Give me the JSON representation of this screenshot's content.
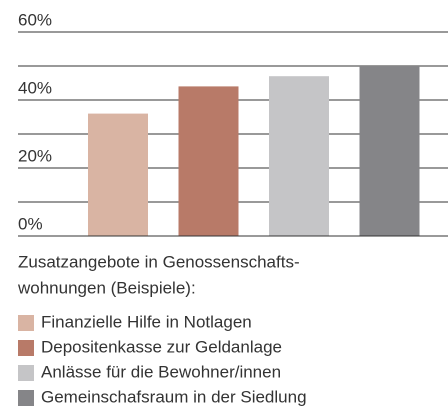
{
  "chart_data": {
    "type": "bar",
    "categories": [
      "Finanzielle Hilfe in Notlagen",
      "Depositenkasse zur Geldanlage",
      "Anlässe für die Bewohner/innen",
      "Gemeinschafsraum in der Siedlung"
    ],
    "values": [
      36,
      44,
      47,
      50
    ],
    "colors": [
      "#d9b4a3",
      "#b87a68",
      "#c5c5c7",
      "#858588"
    ],
    "ylim": [
      0,
      60
    ],
    "yticks": [
      {
        "value": 0,
        "label": "0%"
      },
      {
        "value": 20,
        "label": "20%"
      },
      {
        "value": 40,
        "label": "40%"
      },
      {
        "value": 60,
        "label": "60%"
      }
    ],
    "minor_yticks": [
      10,
      30,
      50
    ],
    "grid": true,
    "caption": [
      "Zusatzangebote in Genossenschafts-",
      "wohnungen (Beispiele):"
    ]
  }
}
